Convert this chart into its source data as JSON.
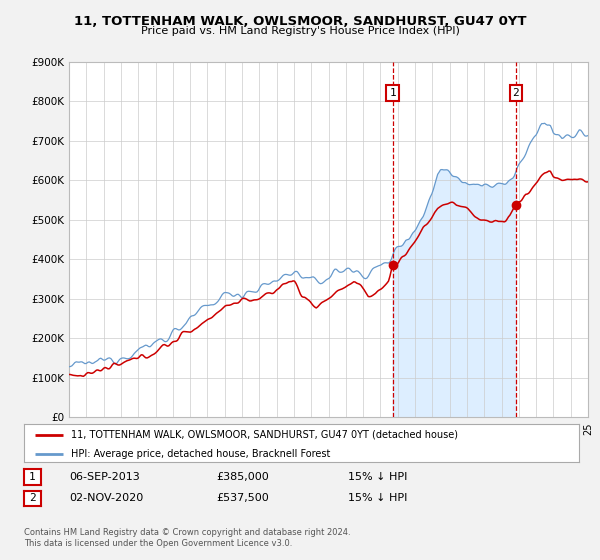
{
  "title": "11, TOTTENHAM WALK, OWLSMOOR, SANDHURST, GU47 0YT",
  "subtitle": "Price paid vs. HM Land Registry's House Price Index (HPI)",
  "background_color": "#f2f2f2",
  "plot_background": "#ffffff",
  "red_line_color": "#cc0000",
  "blue_line_color": "#6699cc",
  "blue_fill_color": "#ddeeff",
  "marker_color": "#cc0000",
  "xmin": 1995,
  "xmax": 2025,
  "ymin": 0,
  "ymax": 900000,
  "yticks": [
    0,
    100000,
    200000,
    300000,
    400000,
    500000,
    600000,
    700000,
    800000,
    900000
  ],
  "ytick_labels": [
    "£0",
    "£100K",
    "£200K",
    "£300K",
    "£400K",
    "£500K",
    "£600K",
    "£700K",
    "£800K",
    "£900K"
  ],
  "sale1_x": 2013.708,
  "sale1_y": 385000,
  "sale1_label": "1",
  "sale1_date": "06-SEP-2013",
  "sale1_price": "£385,000",
  "sale1_hpi": "15% ↓ HPI",
  "sale2_x": 2020.833,
  "sale2_y": 537500,
  "sale2_label": "2",
  "sale2_date": "02-NOV-2020",
  "sale2_price": "£537,500",
  "sale2_hpi": "15% ↓ HPI",
  "legend_line1": "11, TOTTENHAM WALK, OWLSMOOR, SANDHURST, GU47 0YT (detached house)",
  "legend_line2": "HPI: Average price, detached house, Bracknell Forest",
  "footer1": "Contains HM Land Registry data © Crown copyright and database right 2024.",
  "footer2": "This data is licensed under the Open Government Licence v3.0."
}
